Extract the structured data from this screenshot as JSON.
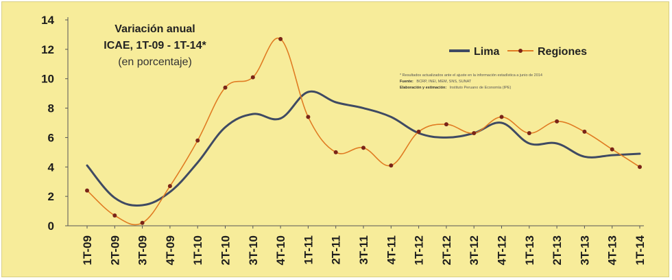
{
  "chart_data": {
    "type": "line",
    "title": "Variación anual",
    "title_line2": "ICAE, 1T-09 - 1T-14*",
    "subtitle": "(en porcentaje)",
    "categories": [
      "1T-09",
      "2T-09",
      "3T-09",
      "4T-09",
      "1T-10",
      "2T-10",
      "3T-10",
      "4T-10",
      "1T-11",
      "2T-11",
      "3T-11",
      "4T-11",
      "1T-12",
      "2T-12",
      "3T-12",
      "4T-12",
      "1T-13",
      "2T-13",
      "3T-13",
      "4T-13",
      "1T-14"
    ],
    "y_ticks": [
      "0",
      "2",
      "4",
      "6",
      "8",
      "10",
      "12",
      "14"
    ],
    "ylim": [
      0,
      14
    ],
    "grid": false,
    "legend_position": "top-right",
    "series": [
      {
        "name": "Lima",
        "color": "#3f4a63",
        "marker": "none",
        "values": [
          4.1,
          1.9,
          1.4,
          2.3,
          4.3,
          6.7,
          7.6,
          7.3,
          9.1,
          8.4,
          8.0,
          7.4,
          6.3,
          6.0,
          6.3,
          7.0,
          5.6,
          5.6,
          4.7,
          4.8,
          4.9
        ]
      },
      {
        "name": "Regiones",
        "color": "#e07b22",
        "marker": "circle",
        "marker_color": "#7a2418",
        "values": [
          2.4,
          0.7,
          0.2,
          2.7,
          5.8,
          9.4,
          10.1,
          12.7,
          7.4,
          5.0,
          5.3,
          4.1,
          6.4,
          6.9,
          6.3,
          7.4,
          6.3,
          7.1,
          6.4,
          5.2,
          4.0
        ]
      }
    ],
    "footnote": {
      "line1": "* Resultados actualizados ante el ajuste en la información estadística a junio de 2014",
      "fuente_label": "Fuente:",
      "fuente_text": "BCRP, INEI, MEM, SNS, SUNAT",
      "elab_label": "Elaboración y estimación:",
      "elab_text": "Instituto Peruano de Economía (IPE)"
    }
  }
}
